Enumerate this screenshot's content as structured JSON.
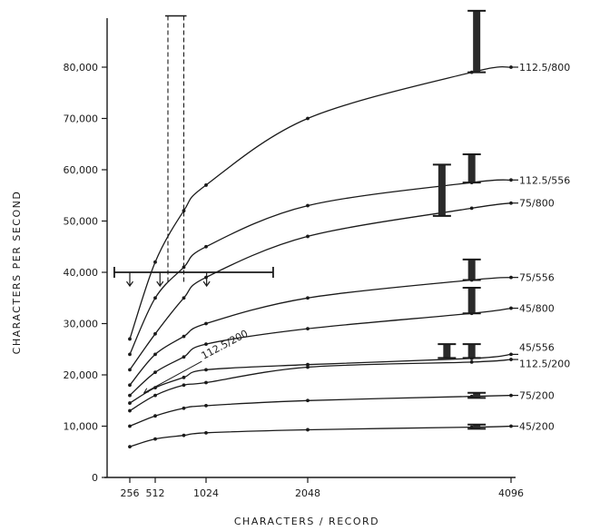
{
  "chart_data": {
    "type": "line",
    "xlabel": "CHARACTERS / RECORD",
    "ylabel": "CHARACTERS PER SECOND",
    "xlim": [
      0,
      4200
    ],
    "ylim": [
      0,
      85000
    ],
    "x_ticks": [
      256,
      512,
      1024,
      2048,
      4096
    ],
    "x_tick_labels": [
      "256",
      "512",
      "1024",
      "2048",
      "4096"
    ],
    "y_ticks": [
      0,
      10000,
      20000,
      30000,
      40000,
      50000,
      60000,
      70000,
      80000
    ],
    "y_tick_labels": [
      "0",
      "10,000",
      "20,000",
      "30,000",
      "40,000",
      "50,000",
      "60,000",
      "70,000",
      "80,000"
    ],
    "grid": false,
    "annotations": [
      {
        "text": "112.5/200",
        "x": 1000,
        "y": 23000,
        "arrow_to": [
          400,
          16500
        ]
      }
    ],
    "series": [
      {
        "name": "112.5/800",
        "x": [
          256,
          512,
          800,
          1024,
          2048,
          3700,
          4096
        ],
        "y": [
          27000,
          42000,
          52000,
          57000,
          70000,
          79000,
          80000
        ]
      },
      {
        "name": "112.5/556",
        "x": [
          256,
          512,
          800,
          1024,
          2048,
          3700,
          4096
        ],
        "y": [
          24000,
          35000,
          41000,
          45000,
          53000,
          57500,
          58000
        ]
      },
      {
        "name": "75/800",
        "x": [
          256,
          512,
          800,
          1024,
          2048,
          3700,
          4096
        ],
        "y": [
          21000,
          28000,
          35000,
          39000,
          47000,
          52500,
          53500
        ]
      },
      {
        "name": "75/556",
        "x": [
          256,
          512,
          800,
          1024,
          2048,
          3700,
          4096
        ],
        "y": [
          18000,
          24000,
          27500,
          30000,
          35000,
          38500,
          39000
        ]
      },
      {
        "name": "45/800",
        "x": [
          256,
          512,
          800,
          1024,
          2048,
          3700,
          4096
        ],
        "y": [
          16000,
          20500,
          23500,
          26000,
          29000,
          32000,
          33000
        ]
      },
      {
        "name": "45/556",
        "x": [
          256,
          512,
          800,
          1024,
          2048,
          3700,
          4096
        ],
        "y": [
          14500,
          17500,
          19500,
          21000,
          22000,
          23200,
          24000
        ]
      },
      {
        "name": "112.5/200",
        "x": [
          256,
          512,
          800,
          1024,
          2048,
          3700,
          4096
        ],
        "y": [
          13000,
          16000,
          18000,
          18500,
          21500,
          22500,
          23000
        ]
      },
      {
        "name": "75/200",
        "x": [
          256,
          512,
          800,
          1024,
          2048,
          3700,
          4096
        ],
        "y": [
          10000,
          12000,
          13500,
          14000,
          15000,
          15800,
          16000
        ]
      },
      {
        "name": "45/200",
        "x": [
          256,
          512,
          800,
          1024,
          2048,
          3700,
          4096
        ],
        "y": [
          6000,
          7500,
          8200,
          8700,
          9300,
          9800,
          10000
        ]
      }
    ],
    "error_bars": [
      {
        "series": "112.5/800",
        "x": 3750,
        "y_low": 79000,
        "y_high": 91000
      },
      {
        "series": "112.5/556",
        "x": 3400,
        "y_low": 51000,
        "y_high": 61000
      },
      {
        "series": "112.5/556",
        "x": 3700,
        "y_low": 57500,
        "y_high": 63000
      },
      {
        "series": "75/556",
        "x": 3700,
        "y_low": 38500,
        "y_high": 42500
      },
      {
        "series": "45/800",
        "x": 3700,
        "y_low": 32000,
        "y_high": 37000
      },
      {
        "series": "45/556",
        "x": 3450,
        "y_low": 23300,
        "y_high": 26000
      },
      {
        "series": "45/556",
        "x": 3700,
        "y_low": 23300,
        "y_high": 26000
      },
      {
        "series": "75/200",
        "x": 3750,
        "y_low": 15500,
        "y_high": 16500
      },
      {
        "series": "45/200",
        "x": 3750,
        "y_low": 9500,
        "y_high": 10300
      }
    ],
    "range_bar": {
      "x_start": 100,
      "x_end": 1700,
      "y": 40000,
      "arrows_at": [
        256,
        560,
        1030
      ],
      "arrow_to": 37500
    },
    "dashed_column": {
      "x_start": 640,
      "x_end": 800,
      "y_low": 38000,
      "y_high": 90000
    },
    "label_offsets_y": {
      "45/556": 1400,
      "112.5/200": -800
    }
  }
}
